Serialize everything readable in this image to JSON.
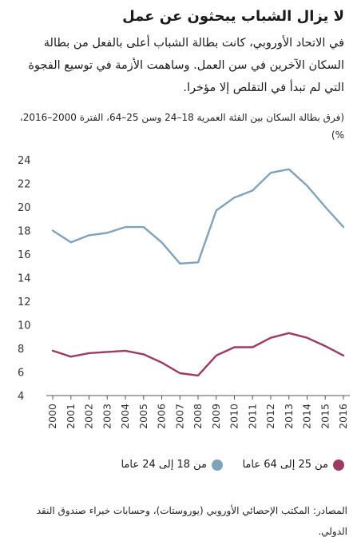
{
  "header": {
    "title": "لا يزال الشباب يبحثون عن عمل",
    "subtitle": "في الاتحاد الأوروبي، كانت بطالة الشباب أعلى بالفعل من بطالة السكان الآخرين في سن العمل. وساهمت الأزمة في توسيع الفجوة التي لم تبدأ في التقلص إلا مؤخرا.",
    "unit_note": "(فرق بطالة السكان بين الفئة العمرية 18–24 وسن 25–64، الفترة 2000–2016، %)"
  },
  "chart_data": {
    "type": "line",
    "x": [
      "2000",
      "2001",
      "2002",
      "2003",
      "2004",
      "2005",
      "2006",
      "2007",
      "2008",
      "2009",
      "2010",
      "2011",
      "2012",
      "2013",
      "2014",
      "2015",
      "2016"
    ],
    "ylim": [
      4,
      24
    ],
    "yticks": [
      4,
      6,
      8,
      10,
      12,
      14,
      16,
      18,
      20,
      22,
      24
    ],
    "grid": false,
    "series": [
      {
        "name": "من 18 إلى 24 عاما",
        "color": "#7fa2bd",
        "values": [
          18.0,
          17.0,
          17.6,
          17.8,
          18.3,
          18.3,
          17.0,
          15.2,
          15.3,
          19.7,
          20.8,
          21.4,
          22.9,
          23.2,
          21.8,
          20.0,
          18.3
        ]
      },
      {
        "name": "من 25 إلى 64 عاما",
        "color": "#9e3a60",
        "values": [
          7.8,
          7.3,
          7.6,
          7.7,
          7.8,
          7.5,
          6.8,
          5.9,
          5.7,
          7.4,
          8.1,
          8.1,
          8.9,
          9.3,
          8.9,
          8.2,
          7.4
        ]
      }
    ]
  },
  "source_text": "المصادر: المكتب الإحصائي الأوروبي (يوروستات)، وحسابات خبراء صندوق النقد الدولي."
}
